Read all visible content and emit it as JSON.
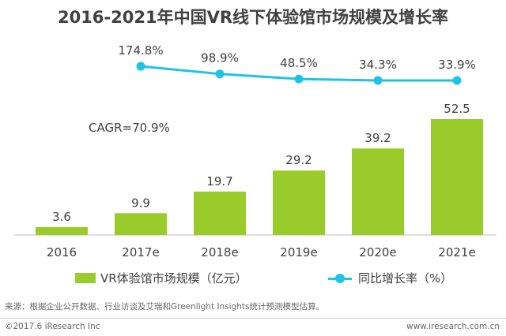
{
  "chart_data": {
    "type": "bar",
    "title": "2016-2021年中国VR线下体验馆市场规模及增长率",
    "categories": [
      "2016",
      "2017e",
      "2018e",
      "2019e",
      "2020e",
      "2021e"
    ],
    "series": [
      {
        "name": "VR体验馆市场规模（亿元）",
        "type": "bar",
        "values": [
          3.6,
          9.9,
          19.7,
          29.2,
          39.2,
          52.5
        ],
        "value_labels": [
          "3.6",
          "9.9",
          "19.7",
          "29.2",
          "39.2",
          "52.5"
        ],
        "color": "#99CC2A"
      },
      {
        "name": "同比增长率（%）",
        "type": "line",
        "x": [
          "2017e",
          "2018e",
          "2019e",
          "2020e",
          "2021e"
        ],
        "values": [
          174.8,
          98.9,
          48.5,
          34.3,
          33.9
        ],
        "value_labels": [
          "174.8%",
          "98.9%",
          "48.5%",
          "34.3%",
          "33.9%"
        ],
        "color": "#1FC3E6"
      }
    ],
    "annotations": [
      "CAGR=70.9%"
    ],
    "legend_placement": "bottom",
    "grid": false
  },
  "footer": {
    "source": "来源：根据企业公开数据、行业访谈及艾瑞和Greenlight Insights统计预测模型估算。",
    "copyright": "©2017.6 iResearch Inc",
    "website": "www.iresearch.com.cn"
  }
}
